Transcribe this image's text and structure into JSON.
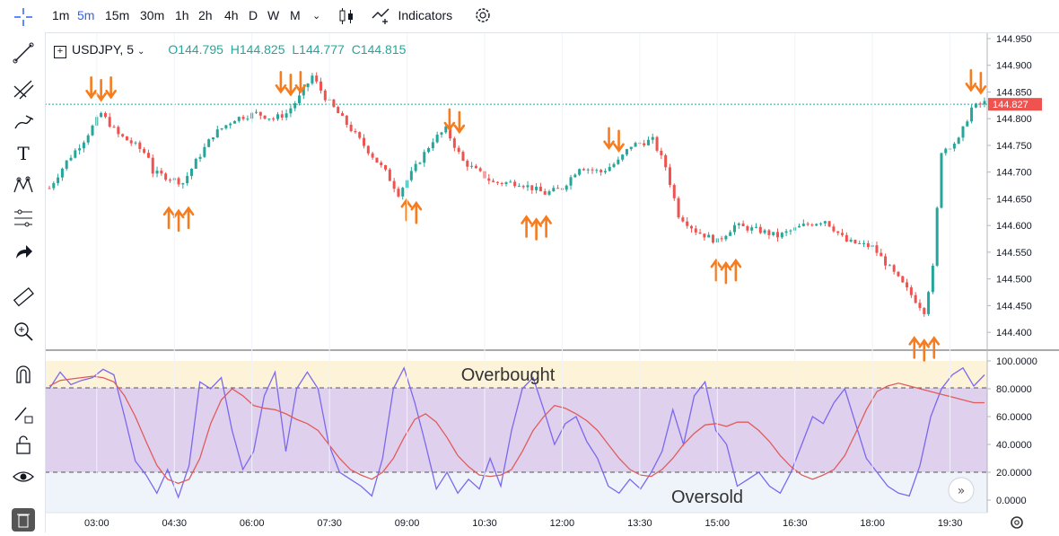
{
  "toolbar": {
    "timeframes": [
      "1m",
      "5m",
      "15m",
      "30m",
      "1h",
      "2h",
      "4h",
      "D",
      "W",
      "M"
    ],
    "active_timeframe": "5m",
    "indicators_label": "Indicators"
  },
  "legend": {
    "symbol": "USDJPY, 5",
    "open": "O144.795",
    "high": "H144.825",
    "low": "L144.777",
    "close": "C144.815"
  },
  "colors": {
    "up": "#26a69a",
    "down": "#ef5350",
    "arrow": "#f57c1f",
    "stoch_k": "#7b68ee",
    "stoch_d": "#e05c5c",
    "band_fill": "#d1c4e9",
    "overbought_fill": "#fdf3d8",
    "price_tag": "#ef5350"
  },
  "chart_data": [
    {
      "type": "candlestick",
      "symbol": "USDJPY",
      "interval": "5",
      "price_axis": {
        "ticks": [
          "144.950",
          "144.900",
          "144.850",
          "144.800",
          "144.750",
          "144.700",
          "144.650",
          "144.600",
          "144.550",
          "144.500",
          "144.450",
          "144.400"
        ],
        "range": [
          144.375,
          144.955
        ]
      },
      "last_price": "144.827",
      "time_axis": {
        "ticks": [
          "03:00",
          "04:30",
          "06:00",
          "07:30",
          "09:00",
          "10:30",
          "12:00",
          "13:30",
          "15:00",
          "16:30",
          "18:00",
          "19:30"
        ]
      },
      "close_path": [
        {
          "t": "02:05",
          "p": 144.67
        },
        {
          "t": "02:25",
          "p": 144.72
        },
        {
          "t": "02:45",
          "p": 144.76
        },
        {
          "t": "03:05",
          "p": 144.81
        },
        {
          "t": "03:25",
          "p": 144.77
        },
        {
          "t": "03:45",
          "p": 144.75
        },
        {
          "t": "04:00",
          "p": 144.73
        },
        {
          "t": "04:05",
          "p": 144.7
        },
        {
          "t": "04:40",
          "p": 144.68
        },
        {
          "t": "04:55",
          "p": 144.72
        },
        {
          "t": "05:15",
          "p": 144.77
        },
        {
          "t": "05:40",
          "p": 144.8
        },
        {
          "t": "06:05",
          "p": 144.81
        },
        {
          "t": "06:25",
          "p": 144.8
        },
        {
          "t": "06:40",
          "p": 144.81
        },
        {
          "t": "06:55",
          "p": 144.84
        },
        {
          "t": "07:10",
          "p": 144.88
        },
        {
          "t": "07:25",
          "p": 144.84
        },
        {
          "t": "07:50",
          "p": 144.79
        },
        {
          "t": "08:15",
          "p": 144.74
        },
        {
          "t": "08:35",
          "p": 144.7
        },
        {
          "t": "08:50",
          "p": 144.66
        },
        {
          "t": "09:10",
          "p": 144.71
        },
        {
          "t": "09:30",
          "p": 144.76
        },
        {
          "t": "09:45",
          "p": 144.78
        },
        {
          "t": "10:05",
          "p": 144.72
        },
        {
          "t": "10:40",
          "p": 144.68
        },
        {
          "t": "11:10",
          "p": 144.68
        },
        {
          "t": "11:40",
          "p": 144.66
        },
        {
          "t": "12:00",
          "p": 144.67
        },
        {
          "t": "12:20",
          "p": 144.71
        },
        {
          "t": "12:45",
          "p": 144.7
        },
        {
          "t": "13:05",
          "p": 144.72
        },
        {
          "t": "13:20",
          "p": 144.75
        },
        {
          "t": "13:45",
          "p": 144.76
        },
        {
          "t": "14:00",
          "p": 144.71
        },
        {
          "t": "14:15",
          "p": 144.62
        },
        {
          "t": "14:35",
          "p": 144.59
        },
        {
          "t": "15:00",
          "p": 144.57
        },
        {
          "t": "15:20",
          "p": 144.6
        },
        {
          "t": "15:50",
          "p": 144.59
        },
        {
          "t": "16:10",
          "p": 144.58
        },
        {
          "t": "16:40",
          "p": 144.6
        },
        {
          "t": "17:05",
          "p": 144.61
        },
        {
          "t": "17:30",
          "p": 144.57
        },
        {
          "t": "18:00",
          "p": 144.56
        },
        {
          "t": "18:20",
          "p": 144.52
        },
        {
          "t": "18:40",
          "p": 144.48
        },
        {
          "t": "19:00",
          "p": 144.44
        },
        {
          "t": "19:10",
          "p": 144.52
        },
        {
          "t": "19:20",
          "p": 144.74
        },
        {
          "t": "19:40",
          "p": 144.76
        },
        {
          "t": "19:55",
          "p": 144.82
        },
        {
          "t": "20:10",
          "p": 144.83
        }
      ],
      "annotations": [
        {
          "type": "down-arrows",
          "count": 3,
          "t": "03:05"
        },
        {
          "type": "up-arrows",
          "count": 3,
          "t": "04:35"
        },
        {
          "type": "down-arrows",
          "count": 3,
          "t": "06:45"
        },
        {
          "type": "up-arrows",
          "count": 2,
          "t": "09:05"
        },
        {
          "type": "down-arrows",
          "count": 2,
          "t": "09:55"
        },
        {
          "type": "up-arrows",
          "count": 3,
          "t": "11:30"
        },
        {
          "type": "down-arrows",
          "count": 2,
          "t": "13:00"
        },
        {
          "type": "up-arrows",
          "count": 3,
          "t": "15:10"
        },
        {
          "type": "up-arrows",
          "count": 3,
          "t": "19:00"
        },
        {
          "type": "down-arrows",
          "count": 2,
          "t": "20:00"
        }
      ]
    },
    {
      "type": "line",
      "indicator": "stochastic",
      "y_axis": {
        "ticks": [
          "100.0000",
          "80.0000",
          "60.0000",
          "40.0000",
          "20.0000",
          "0.0000"
        ],
        "range": [
          0,
          100
        ]
      },
      "levels": [
        80,
        20
      ],
      "labels": {
        "overbought": "Overbought",
        "oversold": "Oversold"
      },
      "series": [
        {
          "key": "k",
          "values": [
            80,
            92,
            83,
            86,
            88,
            94,
            90,
            60,
            28,
            18,
            5,
            22,
            2,
            25,
            85,
            80,
            88,
            50,
            22,
            35,
            75,
            92,
            35,
            80,
            92,
            80,
            40,
            20,
            15,
            10,
            3,
            30,
            80,
            95,
            70,
            40,
            8,
            20,
            5,
            15,
            8,
            30,
            10,
            50,
            80,
            88,
            65,
            40,
            55,
            60,
            42,
            30,
            10,
            5,
            15,
            8,
            20,
            35,
            65,
            40,
            75,
            85,
            50,
            40,
            10,
            15,
            20,
            10,
            5,
            20,
            40,
            60,
            55,
            70,
            80,
            55,
            30,
            20,
            10,
            5,
            3,
            25,
            60,
            80,
            90,
            95,
            82,
            90
          ]
        },
        {
          "key": "d",
          "values": [
            82,
            86,
            87,
            88,
            89,
            88,
            85,
            75,
            60,
            42,
            25,
            15,
            12,
            15,
            30,
            55,
            72,
            80,
            75,
            68,
            66,
            65,
            62,
            58,
            55,
            50,
            40,
            30,
            22,
            18,
            15,
            20,
            30,
            45,
            58,
            62,
            56,
            45,
            32,
            24,
            18,
            17,
            18,
            22,
            35,
            50,
            60,
            68,
            66,
            62,
            57,
            50,
            40,
            30,
            22,
            18,
            17,
            22,
            30,
            40,
            48,
            54,
            55,
            53,
            56,
            56,
            50,
            42,
            32,
            24,
            18,
            15,
            18,
            22,
            32,
            48,
            65,
            78,
            82,
            84,
            82,
            80,
            78,
            76,
            74,
            72,
            70,
            70
          ]
        }
      ]
    }
  ]
}
